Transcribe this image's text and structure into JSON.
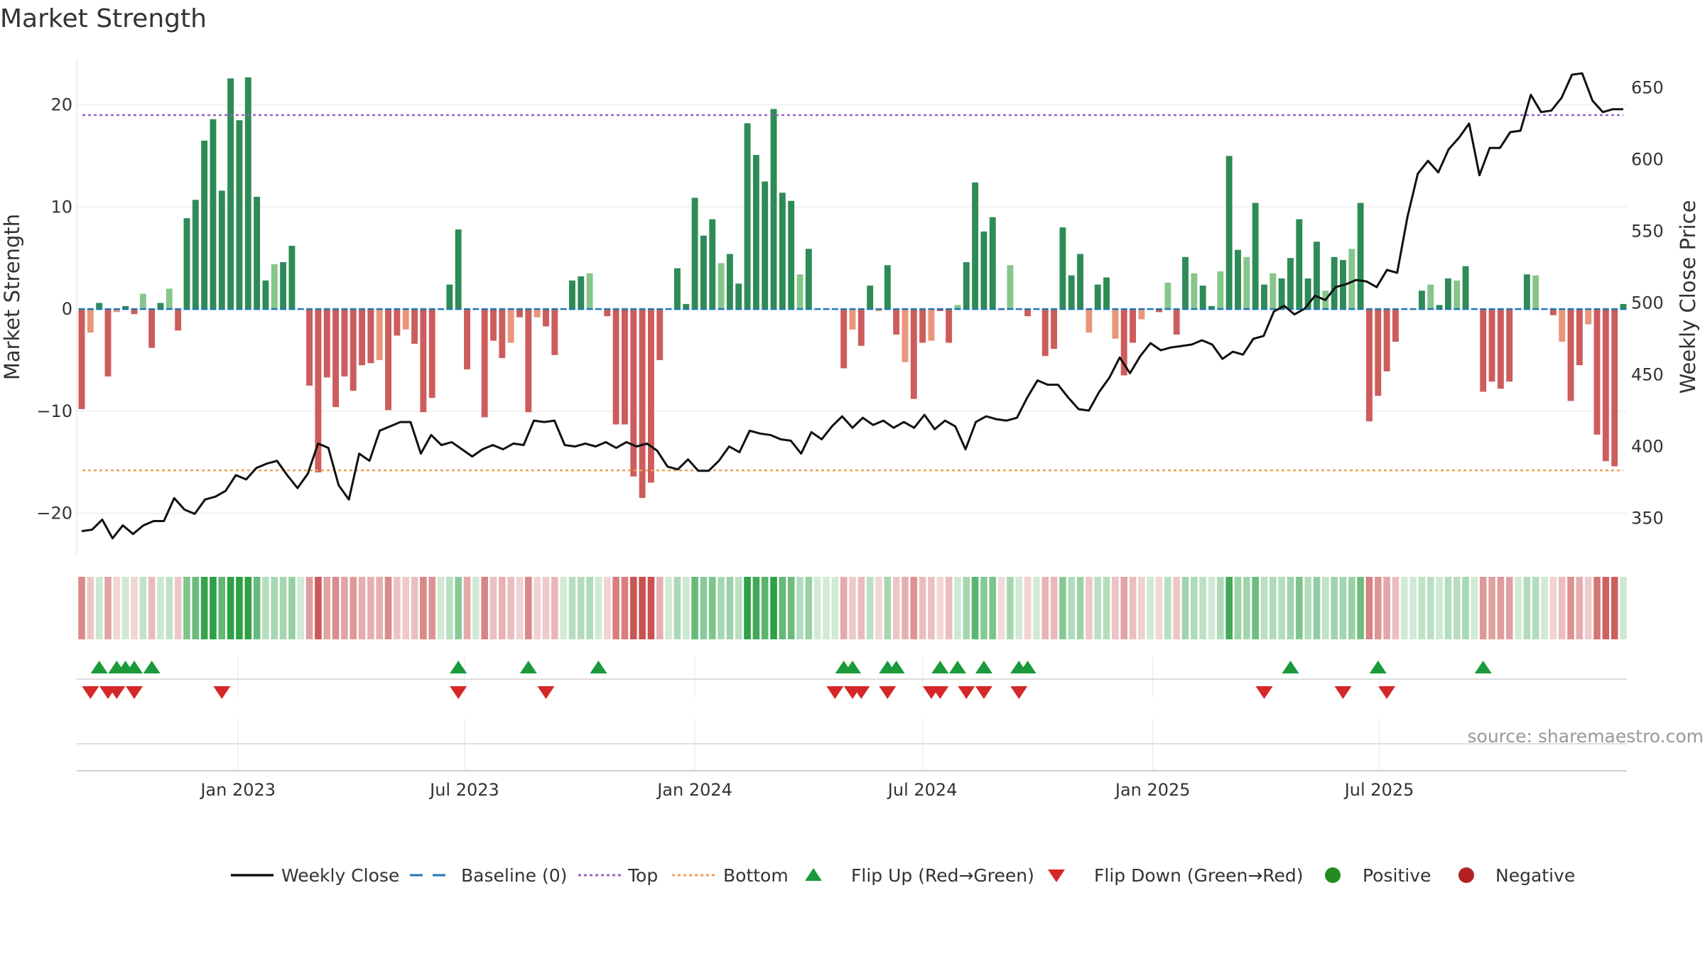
{
  "chart_data": {
    "type": "bar",
    "title": "Market Strength",
    "ylabel": "Market Strength",
    "y2label": "Weekly Close Price",
    "source": "source: sharemaestro.com",
    "ylim": [
      -24,
      24.5
    ],
    "y2lim": [
      325,
      670
    ],
    "yticks": [
      {
        "v": 20,
        "label": "20"
      },
      {
        "v": 10,
        "label": "10"
      },
      {
        "v": 0,
        "label": "0"
      },
      {
        "v": -10,
        "label": "−10"
      },
      {
        "v": -20,
        "label": "−20"
      }
    ],
    "y2ticks": [
      {
        "v": 650,
        "label": "650"
      },
      {
        "v": 600,
        "label": "600"
      },
      {
        "v": 550,
        "label": "550"
      },
      {
        "v": 500,
        "label": "500"
      },
      {
        "v": 450,
        "label": "450"
      },
      {
        "v": 400,
        "label": "400"
      },
      {
        "v": 350,
        "label": "350"
      }
    ],
    "top_level": 19,
    "bottom_level": -15.8,
    "x_start": "2022-08-29",
    "week_days": 7,
    "xticks": [
      {
        "date": "2023-01-01",
        "label": "Jan 2023"
      },
      {
        "date": "2023-07-01",
        "label": "Jul 2023"
      },
      {
        "date": "2024-01-01",
        "label": "Jan 2024"
      },
      {
        "date": "2024-07-01",
        "label": "Jul 2024"
      },
      {
        "date": "2025-01-01",
        "label": "Jan 2025"
      },
      {
        "date": "2025-07-01",
        "label": "Jul 2025"
      }
    ],
    "strength": [
      -9.8,
      -2.3,
      0.6,
      -6.6,
      -0.3,
      0.3,
      -0.5,
      1.5,
      -3.8,
      0.6,
      2.0,
      -2.1,
      8.9,
      10.7,
      16.5,
      18.6,
      11.6,
      22.6,
      18.5,
      22.7,
      11.0,
      2.8,
      4.4,
      4.6,
      6.2,
      0,
      -7.5,
      -16.0,
      -6.7,
      -9.6,
      -6.6,
      -8.0,
      -5.5,
      -5.3,
      -5.0,
      -9.9,
      -2.6,
      -2.0,
      -3.4,
      -10.1,
      -8.7,
      0,
      2.4,
      7.8,
      -5.9,
      0,
      -10.6,
      -3.1,
      -4.8,
      -3.3,
      -0.8,
      -10.1,
      -0.8,
      -1.7,
      -4.5,
      0,
      2.8,
      3.2,
      3.5,
      0,
      -0.7,
      -11.3,
      -11.3,
      -16.4,
      -18.5,
      -17.0,
      -5.0,
      0,
      4.0,
      0.5,
      10.9,
      7.2,
      8.8,
      4.5,
      5.4,
      2.5,
      18.2,
      15.1,
      12.5,
      19.6,
      11.4,
      10.6,
      3.4,
      5.9,
      0,
      0,
      0,
      -5.8,
      -2.0,
      -3.6,
      2.3,
      -0.2,
      4.3,
      -2.5,
      -5.2,
      -8.8,
      -3.3,
      -3.1,
      -0.2,
      -3.3,
      0.4,
      4.6,
      12.4,
      7.6,
      9.0,
      -0.1,
      4.3,
      0,
      -0.7,
      0,
      -4.6,
      -3.9,
      8.0,
      3.3,
      5.4,
      -2.3,
      2.4,
      3.1,
      -2.9,
      -6.5,
      -3.3,
      -1.0,
      0,
      -0.3,
      2.6,
      -2.5,
      5.1,
      3.5,
      2.3,
      0.3,
      3.7,
      15.0,
      5.8,
      5.1,
      10.4,
      2.4,
      3.5,
      3.0,
      5.0,
      8.8,
      3.0,
      6.6,
      1.8,
      5.1,
      4.8,
      5.9,
      10.4,
      -11.0,
      -8.5,
      -6.1,
      -3.2,
      0,
      0,
      1.8,
      2.4,
      0.4,
      3.0,
      2.8,
      4.2,
      0,
      -8.1,
      -7.1,
      -7.8,
      -7.1,
      0,
      3.4,
      3.3,
      0,
      -0.6,
      -3.2,
      -9.0,
      -5.5,
      -1.5,
      -12.3,
      -14.9,
      -15.4,
      0.5
    ],
    "close": [
      341,
      342,
      349,
      336,
      345,
      339,
      345,
      348,
      348,
      364,
      356,
      353,
      363,
      365,
      369,
      380,
      377,
      385,
      388,
      390,
      380,
      371,
      381,
      402,
      399,
      373,
      363,
      395,
      390,
      411,
      414,
      417,
      417,
      395,
      408,
      401,
      403,
      398,
      393,
      398,
      401,
      398,
      402,
      401,
      418,
      417,
      418,
      401,
      400,
      402,
      400,
      403,
      399,
      403,
      400,
      402,
      397,
      386,
      384,
      391,
      383,
      383,
      390,
      400,
      396,
      411,
      409,
      408,
      405,
      404,
      395,
      410,
      405,
      414,
      421,
      413,
      420,
      415,
      418,
      413,
      417,
      413,
      422,
      412,
      418,
      414,
      398,
      417,
      421,
      419,
      418,
      420,
      434,
      446,
      443,
      443,
      434,
      426,
      425,
      438,
      448,
      462,
      451,
      463,
      472,
      467,
      469,
      470,
      471,
      474,
      471,
      461,
      466,
      464,
      475,
      477,
      494,
      498,
      492,
      496,
      505,
      502,
      511,
      513,
      516,
      515,
      511,
      523,
      521,
      560,
      590,
      599,
      591,
      607,
      615,
      625,
      589,
      608,
      608,
      619,
      620,
      645,
      633,
      634,
      643,
      659,
      660,
      641,
      633,
      635,
      635
    ],
    "close_x_offset": 0,
    "strength_pattern_phase": 0,
    "flips_up": [
      "2022-09-12",
      "2022-09-26",
      "2022-10-03",
      "2022-10-10",
      "2022-10-24",
      "2023-06-26",
      "2023-08-21",
      "2023-10-16",
      "2024-04-29",
      "2024-05-06",
      "2024-06-03",
      "2024-06-10",
      "2024-07-15",
      "2024-07-29",
      "2024-08-19",
      "2024-09-16",
      "2024-09-23",
      "2025-04-21",
      "2025-06-30",
      "2025-09-22"
    ],
    "flips_down": [
      "2022-09-05",
      "2022-09-19",
      "2022-09-26",
      "2022-10-10",
      "2022-12-19",
      "2023-06-26",
      "2023-09-04",
      "2024-04-22",
      "2024-05-06",
      "2024-05-13",
      "2024-06-03",
      "2024-07-08",
      "2024-07-15",
      "2024-08-05",
      "2024-08-19",
      "2024-09-16",
      "2025-03-31",
      "2025-06-02",
      "2025-07-07"
    ],
    "legend": [
      {
        "name": "Weekly Close",
        "color": "#111111",
        "marker": "line"
      },
      {
        "name": "Baseline (0)",
        "color": "#1f77b4",
        "marker": "dash"
      },
      {
        "name": "Top",
        "color": "#9467bd",
        "marker": "dot"
      },
      {
        "name": "Bottom",
        "color": "#f0a050",
        "marker": "dot"
      },
      {
        "name": "Flip Up (Red→Green)",
        "color": "#1a9a3a",
        "marker": "triangle-up"
      },
      {
        "name": "Flip Down (Green→Red)",
        "color": "#d62728",
        "marker": "triangle-down"
      },
      {
        "name": "Positive",
        "color": "#228b22",
        "marker": "circle"
      },
      {
        "name": "Negative",
        "color": "#b22222",
        "marker": "circle"
      }
    ],
    "colors": {
      "pos_strong": "#2e8b57",
      "pos_weak": "#86c68a",
      "neg_strong": "#cd5c5c",
      "neg_weak": "#e9967a",
      "baseline": "#1f77b4",
      "top": "#9467bd",
      "bottom": "#f0a050",
      "flip_up": "#1a9a3a",
      "flip_down": "#d62728",
      "line": "#111111"
    }
  }
}
